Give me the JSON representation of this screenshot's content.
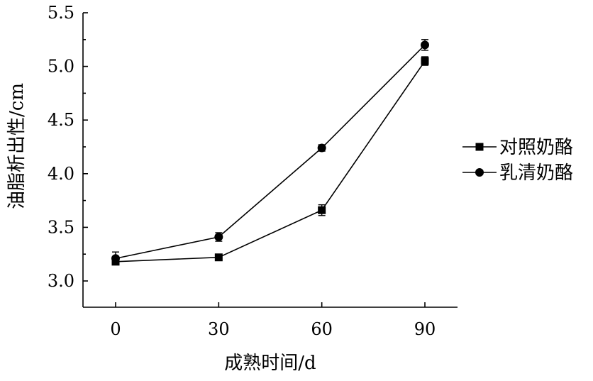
{
  "chart_data": {
    "type": "line",
    "xlabel": "成熟时间/d",
    "ylabel": "油脂析出性/cm",
    "x": [
      0,
      30,
      60,
      90
    ],
    "x_ticks": [
      "0",
      "30",
      "60",
      "90"
    ],
    "y_ticks": [
      "3.0",
      "3.5",
      "4.0",
      "4.5",
      "5.0",
      "5.5"
    ],
    "ylim": [
      2.88,
      5.5
    ],
    "grid": false,
    "legend_position": "right",
    "series": [
      {
        "name": "对照奶酪",
        "marker": "square",
        "values": [
          3.18,
          3.22,
          3.66,
          5.05
        ],
        "errors": [
          0.03,
          0.03,
          0.05,
          0.04
        ]
      },
      {
        "name": "乳清奶酪",
        "marker": "circle",
        "values": [
          3.21,
          3.41,
          4.24,
          5.2
        ],
        "errors": [
          0.06,
          0.04,
          0.03,
          0.05
        ]
      }
    ]
  }
}
